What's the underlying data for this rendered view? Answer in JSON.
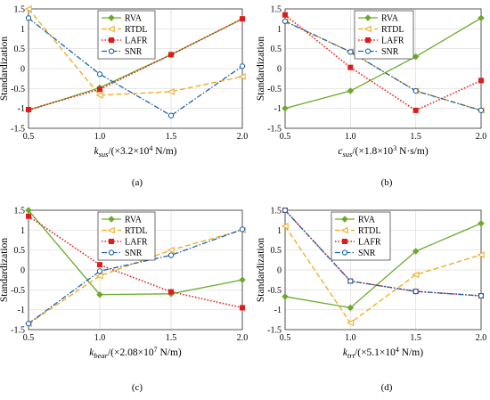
{
  "colors": {
    "RVA": "#6aaa2a",
    "RTDL": "#f0a81e",
    "LAFR": "#e01b1b",
    "SNR": "#1f64a8"
  },
  "chart_data": [
    {
      "type": "line",
      "panel_label": "(a)",
      "ylabel": "Standardization",
      "xlabel_sym": "k",
      "xlabel_sub": "sus",
      "xlabel_text": "/(×3.2×10",
      "xlabel_sup": "4",
      "xlabel_unit": " N/m)",
      "x": [
        0.5,
        1.0,
        1.5,
        2.0
      ],
      "x_ticks": [
        "0.5",
        "1.0",
        "1.5",
        "2.0"
      ],
      "ylim": [
        -1.5,
        1.5
      ],
      "y_ticks": [
        "-1.5",
        "-1",
        "-0.5",
        "0",
        "0.5",
        "1",
        "1.5"
      ],
      "legend_position": "top-center",
      "series": [
        {
          "name": "RVA",
          "values": [
            -1.05,
            -0.48,
            0.35,
            1.25
          ]
        },
        {
          "name": "RTDL",
          "values": [
            1.5,
            -0.67,
            -0.58,
            -0.2
          ]
        },
        {
          "name": "LAFR",
          "values": [
            -1.03,
            -0.52,
            0.35,
            1.25
          ]
        },
        {
          "name": "SNR",
          "values": [
            1.27,
            -0.14,
            -1.18,
            0.06
          ]
        }
      ]
    },
    {
      "type": "line",
      "panel_label": "(b)",
      "ylabel": "Standardization",
      "xlabel_sym": "c",
      "xlabel_sub": "sus",
      "xlabel_text": "/(×1.8×10",
      "xlabel_sup": "3",
      "xlabel_unit": " N·s/m)",
      "x": [
        0.5,
        1.0,
        1.5,
        2.0
      ],
      "x_ticks": [
        "0.5",
        "1.0",
        "1.5",
        "2.0"
      ],
      "ylim": [
        -1.5,
        1.5
      ],
      "y_ticks": [
        "-1.5",
        "-1",
        "-0.5",
        "0",
        "0.5",
        "1",
        "1.5"
      ],
      "legend_position": "top-center",
      "series": [
        {
          "name": "RVA",
          "values": [
            -1.0,
            -0.56,
            0.3,
            1.27
          ]
        },
        {
          "name": "RTDL",
          "values": [
            1.19,
            0.42,
            -0.56,
            -1.05
          ]
        },
        {
          "name": "LAFR",
          "values": [
            1.35,
            0.03,
            -1.05,
            -0.3
          ]
        },
        {
          "name": "SNR",
          "values": [
            1.19,
            0.42,
            -0.56,
            -1.05
          ]
        }
      ]
    },
    {
      "type": "line",
      "panel_label": "(c)",
      "ylabel": "Standardization",
      "xlabel_sym": "k",
      "xlabel_sub": "bear",
      "xlabel_text": "/(×2.08×10",
      "xlabel_sup": "7",
      "xlabel_unit": " N/m)",
      "x": [
        0.5,
        1.0,
        1.5,
        2.0
      ],
      "x_ticks": [
        "0.5",
        "1.0",
        "1.5",
        "2.0"
      ],
      "ylim": [
        -1.5,
        1.5
      ],
      "y_ticks": [
        "-1.5",
        "-1",
        "-0.5",
        "0",
        "0.5",
        "1",
        "1.5"
      ],
      "legend_position": "top-center",
      "series": [
        {
          "name": "RVA",
          "values": [
            1.5,
            -0.62,
            -0.6,
            -0.25
          ]
        },
        {
          "name": "RTDL",
          "values": [
            -1.35,
            -0.15,
            0.5,
            1.0
          ]
        },
        {
          "name": "LAFR",
          "values": [
            1.35,
            0.13,
            -0.55,
            -0.95
          ]
        },
        {
          "name": "SNR",
          "values": [
            -1.35,
            -0.03,
            0.37,
            1.02
          ]
        }
      ]
    },
    {
      "type": "line",
      "panel_label": "(d)",
      "ylabel": "Standardization",
      "xlabel_sym": "k",
      "xlabel_sub": "trt",
      "xlabel_text": "/(×5.1×10",
      "xlabel_sup": "4",
      "xlabel_unit": " N/m)",
      "x": [
        0.5,
        1.0,
        1.5,
        2.0
      ],
      "x_ticks": [
        "0.5",
        "1.0",
        "1.5",
        "2.0"
      ],
      "ylim": [
        -1.5,
        1.5
      ],
      "y_ticks": [
        "-1.5",
        "-1",
        "-0.5",
        "0",
        "0.5",
        "1",
        "1.5"
      ],
      "legend_position": "top-center",
      "series": [
        {
          "name": "RVA",
          "values": [
            -0.67,
            -0.95,
            0.47,
            1.17
          ]
        },
        {
          "name": "RTDL",
          "values": [
            1.1,
            -1.33,
            -0.12,
            0.38
          ]
        },
        {
          "name": "LAFR",
          "values": [
            1.5,
            -0.28,
            -0.54,
            -0.65
          ]
        },
        {
          "name": "SNR",
          "values": [
            1.5,
            -0.28,
            -0.54,
            -0.65
          ]
        }
      ]
    }
  ]
}
